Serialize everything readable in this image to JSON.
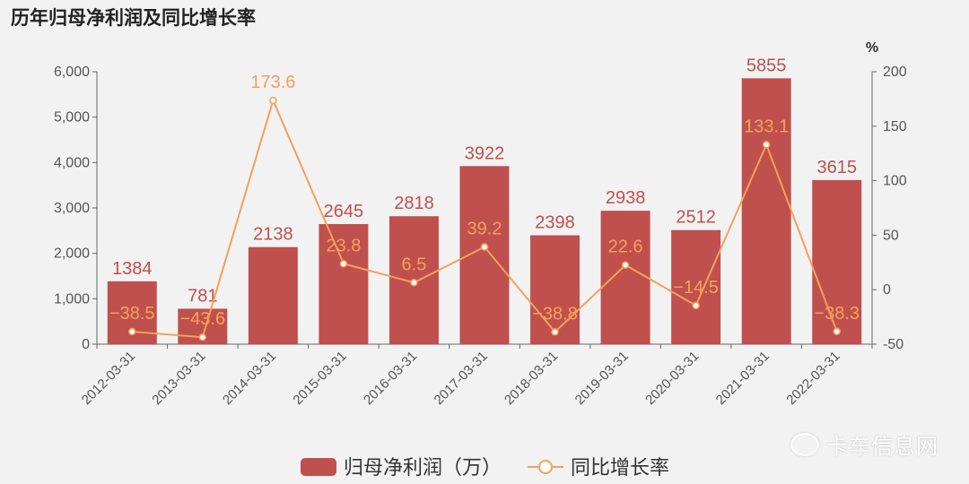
{
  "title": "历年归母净利润及同比增长率",
  "watermark": "卡车信息网",
  "colors": {
    "bar": "#c0504d",
    "line": "#f5a05a",
    "axis": "#666666"
  },
  "chart_data": {
    "type": "bar+line",
    "categories": [
      "2012-03-31",
      "2013-03-31",
      "2014-03-31",
      "2015-03-31",
      "2016-03-31",
      "2017-03-31",
      "2018-03-31",
      "2019-03-31",
      "2020-03-31",
      "2021-03-31",
      "2022-03-31"
    ],
    "series": [
      {
        "name": "归母净利润（万）",
        "type": "bar",
        "axis": "left",
        "values": [
          1384,
          781,
          2138,
          2645,
          2818,
          3922,
          2398,
          2938,
          2512,
          5855,
          3615
        ],
        "labels": [
          "1384",
          "781",
          "2138",
          "2645",
          "2818",
          "3922",
          "2398",
          "2938",
          "2512",
          "5855",
          "3615"
        ]
      },
      {
        "name": "同比增长率",
        "type": "line",
        "axis": "right",
        "values": [
          -38.5,
          -43.6,
          173.6,
          23.8,
          6.5,
          39.2,
          -38.8,
          22.6,
          -14.5,
          133.1,
          -38.3
        ],
        "labels": [
          "-38.5",
          "-43.6",
          "173.6",
          "23.8",
          "6.5",
          "39.2",
          "-38.8",
          "22.6",
          "-14.5",
          "133.1",
          "-38.3"
        ]
      }
    ],
    "y_left": {
      "ylim": [
        0,
        6000
      ],
      "ticks": [
        0,
        1000,
        2000,
        3000,
        4000,
        5000,
        6000
      ],
      "tick_labels": [
        "0",
        "1,000",
        "2,000",
        "3,000",
        "4,000",
        "5,000",
        "6,000"
      ]
    },
    "y_right": {
      "ylim": [
        -50,
        200
      ],
      "ticks": [
        -50,
        0,
        50,
        100,
        150,
        200
      ],
      "tick_labels": [
        "-50",
        "0",
        "50",
        "100",
        "150",
        "200"
      ],
      "unit": "%"
    },
    "legend": {
      "placement": "bottom-center",
      "items": [
        "归母净利润（万）",
        "同比增长率"
      ]
    },
    "grid": false
  }
}
